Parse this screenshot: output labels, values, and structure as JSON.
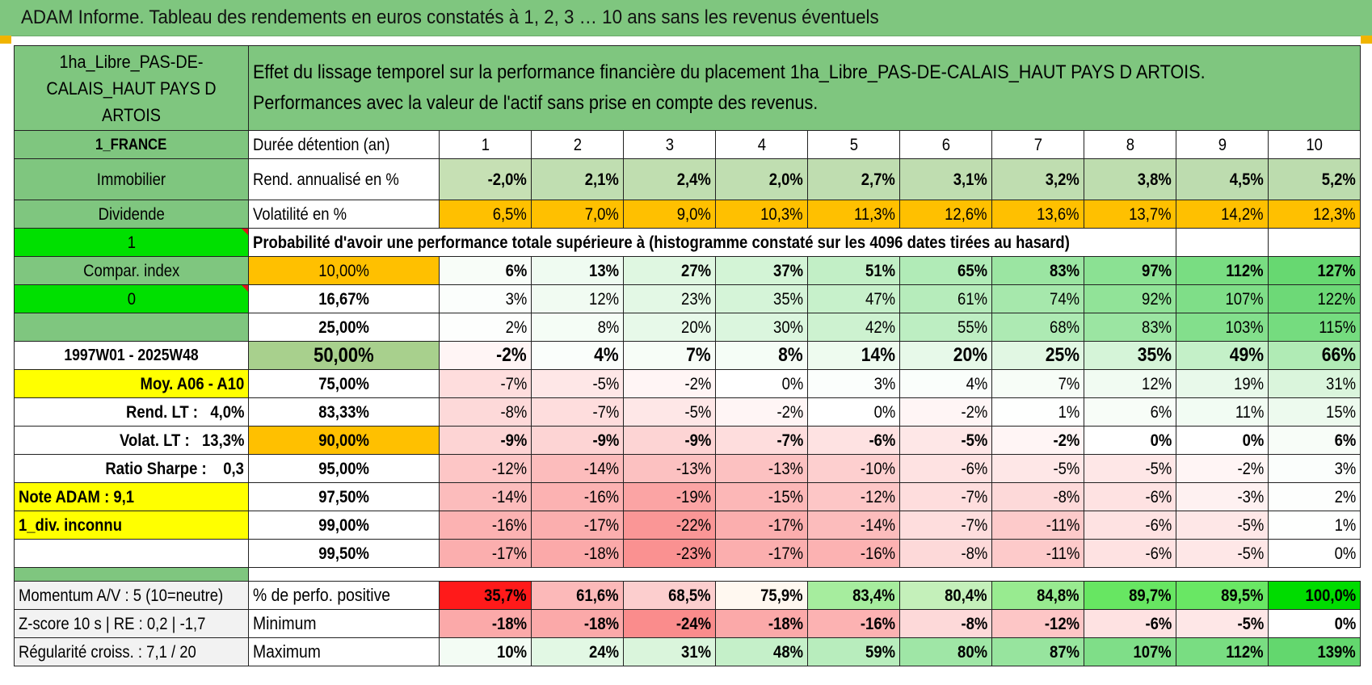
{
  "title": "ADAM Informe. Tableau des rendements en euros constatés à 1, 2, 3 … 10 ans sans les revenus éventuels",
  "colors": {
    "header_green": "#7fc67f",
    "bright_green": "#00e000",
    "orange": "#ffc000",
    "yellow": "#ffff00",
    "red_text": "#e0141c"
  },
  "asset": {
    "name": "1ha_Libre_PAS-DE-CALAIS_HAUT PAYS D ARTOIS",
    "name_lines": [
      "1ha_Libre_PAS-DE-",
      "CALAIS_HAUT PAYS D",
      "ARTOIS"
    ],
    "description_line1": "Effet du lissage temporel sur la performance financière du placement 1ha_Libre_PAS-DE-CALAIS_HAUT PAYS D ARTOIS.",
    "description_line2": "Performances avec la valeur de l'actif sans prise en compte des revenus."
  },
  "side": {
    "country": "1_FRANCE",
    "category": "Immobilier",
    "type": "Dividende",
    "flag1": "1",
    "compar_index": "Compar. index",
    "flag2": "0",
    "period": "1997W01 - 2025W48",
    "moy": "Moy. A06 - A10",
    "rend_lt_label": "Rend. LT :",
    "rend_lt_value": "4,0%",
    "volat_lt_label": "Volat. LT :",
    "volat_lt_value": "13,3%",
    "sharpe_label": "Ratio Sharpe :",
    "sharpe_value": "0,3",
    "note_adam": "Note ADAM : 9,1",
    "div": "1_div. inconnu"
  },
  "header": {
    "duration_label": "Durée détention (an)",
    "years": [
      "1",
      "2",
      "3",
      "4",
      "5",
      "6",
      "7",
      "8",
      "9",
      "10"
    ]
  },
  "rend": {
    "label": "Rend. annualisé en %",
    "values": [
      "-2,0%",
      "2,1%",
      "2,4%",
      "2,0%",
      "2,7%",
      "3,1%",
      "3,2%",
      "3,8%",
      "4,5%",
      "5,2%"
    ]
  },
  "vol": {
    "label": "Volatilité en %",
    "values": [
      "6,5%",
      "7,0%",
      "9,0%",
      "10,3%",
      "11,3%",
      "12,6%",
      "13,6%",
      "13,7%",
      "14,2%",
      "12,3%"
    ]
  },
  "prob_title": "Probabilité d'avoir une performance totale supérieure à (histogramme constaté sur les 4096 dates tirées au hasard)",
  "quantiles": [
    {
      "p": "10,00%",
      "v": [
        "6%",
        "13%",
        "27%",
        "37%",
        "51%",
        "65%",
        "83%",
        "97%",
        "112%",
        "127%"
      ]
    },
    {
      "p": "16,67%",
      "v": [
        "3%",
        "12%",
        "23%",
        "35%",
        "47%",
        "61%",
        "74%",
        "92%",
        "107%",
        "122%"
      ]
    },
    {
      "p": "25,00%",
      "v": [
        "2%",
        "8%",
        "20%",
        "30%",
        "42%",
        "55%",
        "68%",
        "83%",
        "103%",
        "115%"
      ]
    },
    {
      "p": "50,00%",
      "v": [
        "-2%",
        "4%",
        "7%",
        "8%",
        "14%",
        "20%",
        "25%",
        "35%",
        "49%",
        "66%"
      ]
    },
    {
      "p": "75,00%",
      "v": [
        "-7%",
        "-5%",
        "-2%",
        "0%",
        "3%",
        "4%",
        "7%",
        "12%",
        "19%",
        "31%"
      ]
    },
    {
      "p": "83,33%",
      "v": [
        "-8%",
        "-7%",
        "-5%",
        "-2%",
        "0%",
        "-2%",
        "1%",
        "6%",
        "11%",
        "15%"
      ]
    },
    {
      "p": "90,00%",
      "v": [
        "-9%",
        "-9%",
        "-9%",
        "-7%",
        "-6%",
        "-5%",
        "-2%",
        "0%",
        "0%",
        "6%"
      ]
    },
    {
      "p": "95,00%",
      "v": [
        "-12%",
        "-14%",
        "-13%",
        "-13%",
        "-10%",
        "-6%",
        "-5%",
        "-5%",
        "-2%",
        "3%"
      ]
    },
    {
      "p": "97,50%",
      "v": [
        "-14%",
        "-16%",
        "-19%",
        "-15%",
        "-12%",
        "-7%",
        "-8%",
        "-6%",
        "-3%",
        "2%"
      ]
    },
    {
      "p": "99,00%",
      "v": [
        "-16%",
        "-17%",
        "-22%",
        "-17%",
        "-14%",
        "-7%",
        "-11%",
        "-6%",
        "-5%",
        "1%"
      ]
    },
    {
      "p": "99,50%",
      "v": [
        "-17%",
        "-18%",
        "-23%",
        "-17%",
        "-16%",
        "-8%",
        "-11%",
        "-6%",
        "-5%",
        "0%"
      ]
    }
  ],
  "bottom": [
    {
      "side": "Momentum A/V : 5 (10=neutre)",
      "label": "% de perfo. positive",
      "v": [
        "35,7%",
        "61,6%",
        "68,5%",
        "75,9%",
        "83,4%",
        "80,4%",
        "84,8%",
        "89,7%",
        "89,5%",
        "100,0%"
      ]
    },
    {
      "side": "Z-score 10 s | RE : 0,2 | -1,7",
      "label": "Minimum",
      "v": [
        "-18%",
        "-18%",
        "-24%",
        "-18%",
        "-16%",
        "-8%",
        "-12%",
        "-6%",
        "-5%",
        "0%"
      ]
    },
    {
      "side": "Régularité croiss. : 7,1 / 20",
      "label": "Maximum",
      "v": [
        "10%",
        "24%",
        "31%",
        "48%",
        "59%",
        "80%",
        "87%",
        "107%",
        "112%",
        "139%"
      ]
    }
  ]
}
